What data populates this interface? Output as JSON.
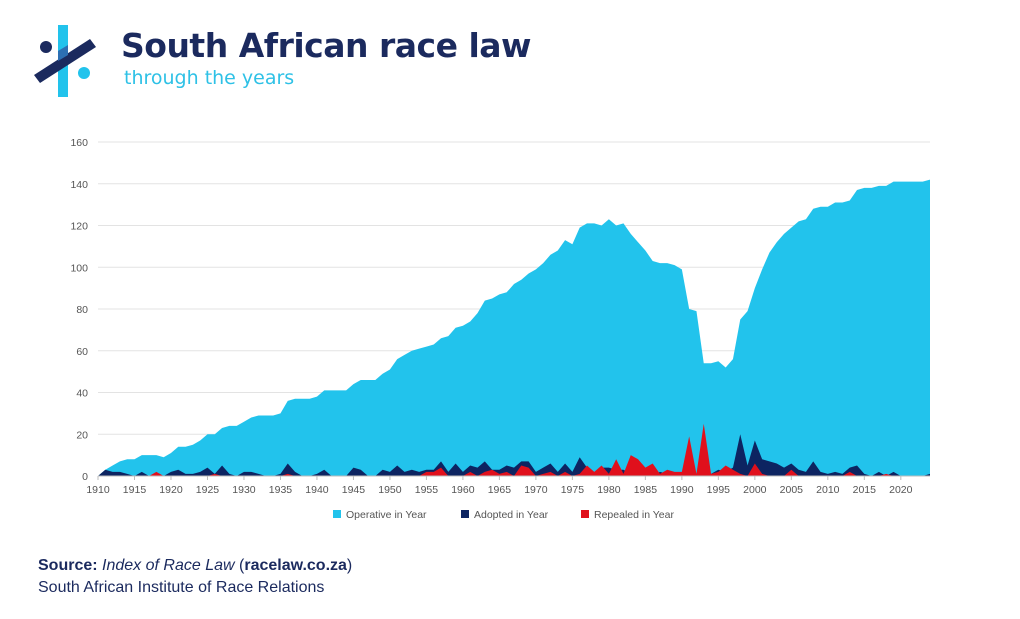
{
  "header": {
    "title": "South African race law",
    "subtitle": "through the years"
  },
  "colors": {
    "navy": "#1b2a5e",
    "operative": "#22c3ec",
    "adopted": "#0d2461",
    "repealed": "#e0101c",
    "grid": "#e3e3e3"
  },
  "source": {
    "label": "Source:",
    "title": "Index of Race Law",
    "paren_open": " (",
    "url": "racelaw.co.za",
    "paren_close": ")",
    "institute": "South African Institute of Race Relations"
  },
  "chart_data": {
    "type": "area",
    "title": "",
    "xlabel": "",
    "ylabel": "",
    "xlim": [
      1910,
      2024
    ],
    "ylim": [
      0,
      160
    ],
    "yticks": [
      0,
      20,
      40,
      60,
      80,
      100,
      120,
      140,
      160
    ],
    "xticks": [
      1910,
      1915,
      1920,
      1925,
      1930,
      1935,
      1940,
      1945,
      1950,
      1955,
      1960,
      1965,
      1970,
      1975,
      1980,
      1985,
      1990,
      1995,
      2000,
      2005,
      2010,
      2015,
      2020
    ],
    "grid": true,
    "legend_position": "bottom",
    "series": [
      {
        "name": "Operative in Year",
        "points": [
          [
            1910,
            0
          ],
          [
            1911,
            3
          ],
          [
            1912,
            5
          ],
          [
            1913,
            7
          ],
          [
            1914,
            8
          ],
          [
            1915,
            8
          ],
          [
            1916,
            10
          ],
          [
            1917,
            10
          ],
          [
            1918,
            10
          ],
          [
            1919,
            9
          ],
          [
            1920,
            11
          ],
          [
            1921,
            14
          ],
          [
            1922,
            14
          ],
          [
            1923,
            15
          ],
          [
            1924,
            17
          ],
          [
            1925,
            20
          ],
          [
            1926,
            20
          ],
          [
            1927,
            23
          ],
          [
            1928,
            24
          ],
          [
            1929,
            24
          ],
          [
            1930,
            26
          ],
          [
            1931,
            28
          ],
          [
            1932,
            29
          ],
          [
            1933,
            29
          ],
          [
            1934,
            29
          ],
          [
            1935,
            30
          ],
          [
            1936,
            36
          ],
          [
            1937,
            37
          ],
          [
            1938,
            37
          ],
          [
            1939,
            37
          ],
          [
            1940,
            38
          ],
          [
            1941,
            41
          ],
          [
            1942,
            41
          ],
          [
            1943,
            41
          ],
          [
            1944,
            41
          ],
          [
            1945,
            44
          ],
          [
            1946,
            46
          ],
          [
            1947,
            46
          ],
          [
            1948,
            46
          ],
          [
            1949,
            49
          ],
          [
            1950,
            51
          ],
          [
            1951,
            56
          ],
          [
            1952,
            58
          ],
          [
            1953,
            60
          ],
          [
            1954,
            61
          ],
          [
            1955,
            62
          ],
          [
            1956,
            63
          ],
          [
            1957,
            66
          ],
          [
            1958,
            67
          ],
          [
            1959,
            71
          ],
          [
            1960,
            72
          ],
          [
            1961,
            74
          ],
          [
            1962,
            78
          ],
          [
            1963,
            84
          ],
          [
            1964,
            85
          ],
          [
            1965,
            87
          ],
          [
            1966,
            88
          ],
          [
            1967,
            92
          ],
          [
            1968,
            94
          ],
          [
            1969,
            97
          ],
          [
            1970,
            99
          ],
          [
            1971,
            102
          ],
          [
            1972,
            106
          ],
          [
            1973,
            108
          ],
          [
            1974,
            113
          ],
          [
            1975,
            111
          ],
          [
            1976,
            119
          ],
          [
            1977,
            121
          ],
          [
            1978,
            121
          ],
          [
            1979,
            120
          ],
          [
            1980,
            123
          ],
          [
            1981,
            120
          ],
          [
            1982,
            121
          ],
          [
            1983,
            116
          ],
          [
            1984,
            112
          ],
          [
            1985,
            108
          ],
          [
            1986,
            103
          ],
          [
            1987,
            102
          ],
          [
            1988,
            102
          ],
          [
            1989,
            101
          ],
          [
            1990,
            99
          ],
          [
            1991,
            80
          ],
          [
            1992,
            79
          ],
          [
            1993,
            54
          ],
          [
            1994,
            54
          ],
          [
            1995,
            55
          ],
          [
            1996,
            52
          ],
          [
            1997,
            56
          ],
          [
            1998,
            75
          ],
          [
            1999,
            79
          ],
          [
            2000,
            90
          ],
          [
            2001,
            99
          ],
          [
            2002,
            107
          ],
          [
            2003,
            112
          ],
          [
            2004,
            116
          ],
          [
            2005,
            119
          ],
          [
            2006,
            122
          ],
          [
            2007,
            123
          ],
          [
            2008,
            128
          ],
          [
            2009,
            129
          ],
          [
            2010,
            129
          ],
          [
            2011,
            131
          ],
          [
            2012,
            131
          ],
          [
            2013,
            132
          ],
          [
            2014,
            137
          ],
          [
            2015,
            138
          ],
          [
            2016,
            138
          ],
          [
            2017,
            139
          ],
          [
            2018,
            139
          ],
          [
            2019,
            141
          ],
          [
            2020,
            141
          ],
          [
            2021,
            141
          ],
          [
            2022,
            141
          ],
          [
            2023,
            141
          ],
          [
            2024,
            142
          ]
        ]
      },
      {
        "name": "Adopted in Year",
        "points": [
          [
            1910,
            0
          ],
          [
            1911,
            3
          ],
          [
            1912,
            2
          ],
          [
            1913,
            2
          ],
          [
            1914,
            1
          ],
          [
            1915,
            0
          ],
          [
            1916,
            2
          ],
          [
            1917,
            0
          ],
          [
            1918,
            0
          ],
          [
            1919,
            0
          ],
          [
            1920,
            2
          ],
          [
            1921,
            3
          ],
          [
            1922,
            1
          ],
          [
            1923,
            1
          ],
          [
            1924,
            2
          ],
          [
            1925,
            4
          ],
          [
            1926,
            1
          ],
          [
            1927,
            5
          ],
          [
            1928,
            1
          ],
          [
            1929,
            0
          ],
          [
            1930,
            2
          ],
          [
            1931,
            2
          ],
          [
            1932,
            1
          ],
          [
            1933,
            0
          ],
          [
            1934,
            0
          ],
          [
            1935,
            1
          ],
          [
            1936,
            6
          ],
          [
            1937,
            2
          ],
          [
            1938,
            0
          ],
          [
            1939,
            0
          ],
          [
            1940,
            1
          ],
          [
            1941,
            3
          ],
          [
            1942,
            0
          ],
          [
            1943,
            0
          ],
          [
            1944,
            0
          ],
          [
            1945,
            4
          ],
          [
            1946,
            3
          ],
          [
            1947,
            0
          ],
          [
            1948,
            0
          ],
          [
            1949,
            3
          ],
          [
            1950,
            2
          ],
          [
            1951,
            5
          ],
          [
            1952,
            2
          ],
          [
            1953,
            3
          ],
          [
            1954,
            2
          ],
          [
            1955,
            3
          ],
          [
            1956,
            3
          ],
          [
            1957,
            7
          ],
          [
            1958,
            2
          ],
          [
            1959,
            6
          ],
          [
            1960,
            2
          ],
          [
            1961,
            5
          ],
          [
            1962,
            4
          ],
          [
            1963,
            7
          ],
          [
            1964,
            3
          ],
          [
            1965,
            3
          ],
          [
            1966,
            5
          ],
          [
            1967,
            4
          ],
          [
            1968,
            7
          ],
          [
            1969,
            7
          ],
          [
            1970,
            2
          ],
          [
            1971,
            4
          ],
          [
            1972,
            6
          ],
          [
            1973,
            2
          ],
          [
            1974,
            6
          ],
          [
            1975,
            2
          ],
          [
            1976,
            9
          ],
          [
            1977,
            4
          ],
          [
            1978,
            1
          ],
          [
            1979,
            4
          ],
          [
            1980,
            4
          ],
          [
            1981,
            3
          ],
          [
            1982,
            3
          ],
          [
            1983,
            1
          ],
          [
            1984,
            1
          ],
          [
            1985,
            1
          ],
          [
            1986,
            0
          ],
          [
            1987,
            2
          ],
          [
            1988,
            1
          ],
          [
            1989,
            0
          ],
          [
            1990,
            1
          ],
          [
            1991,
            1
          ],
          [
            1992,
            1
          ],
          [
            1993,
            1
          ],
          [
            1994,
            1
          ],
          [
            1995,
            3
          ],
          [
            1996,
            2
          ],
          [
            1997,
            4
          ],
          [
            1998,
            20
          ],
          [
            1999,
            5
          ],
          [
            2000,
            17
          ],
          [
            2001,
            8
          ],
          [
            2002,
            7
          ],
          [
            2003,
            6
          ],
          [
            2004,
            4
          ],
          [
            2005,
            6
          ],
          [
            2006,
            3
          ],
          [
            2007,
            2
          ],
          [
            2008,
            7
          ],
          [
            2009,
            2
          ],
          [
            2010,
            1
          ],
          [
            2011,
            2
          ],
          [
            2012,
            1
          ],
          [
            2013,
            4
          ],
          [
            2014,
            5
          ],
          [
            2015,
            1
          ],
          [
            2016,
            0
          ],
          [
            2017,
            2
          ],
          [
            2018,
            0
          ],
          [
            2019,
            2
          ],
          [
            2020,
            0
          ],
          [
            2021,
            0
          ],
          [
            2022,
            0
          ],
          [
            2023,
            0
          ],
          [
            2024,
            1
          ]
        ]
      },
      {
        "name": "Repealed in Year",
        "points": [
          [
            1910,
            0
          ],
          [
            1917,
            0
          ],
          [
            1918,
            2
          ],
          [
            1919,
            0
          ],
          [
            1925,
            0
          ],
          [
            1926,
            1
          ],
          [
            1927,
            0
          ],
          [
            1935,
            0
          ],
          [
            1936,
            1
          ],
          [
            1937,
            0
          ],
          [
            1954,
            0
          ],
          [
            1955,
            2
          ],
          [
            1956,
            2
          ],
          [
            1957,
            4
          ],
          [
            1958,
            0
          ],
          [
            1960,
            0
          ],
          [
            1961,
            2
          ],
          [
            1962,
            0
          ],
          [
            1963,
            2
          ],
          [
            1964,
            3
          ],
          [
            1965,
            1
          ],
          [
            1966,
            2
          ],
          [
            1967,
            0
          ],
          [
            1968,
            5
          ],
          [
            1969,
            4
          ],
          [
            1970,
            0
          ],
          [
            1971,
            1
          ],
          [
            1972,
            2
          ],
          [
            1973,
            0
          ],
          [
            1974,
            2
          ],
          [
            1975,
            0
          ],
          [
            1976,
            1
          ],
          [
            1977,
            5
          ],
          [
            1978,
            2
          ],
          [
            1979,
            5
          ],
          [
            1980,
            1
          ],
          [
            1981,
            8
          ],
          [
            1982,
            1
          ],
          [
            1983,
            10
          ],
          [
            1984,
            8
          ],
          [
            1985,
            4
          ],
          [
            1986,
            6
          ],
          [
            1987,
            1
          ],
          [
            1988,
            3
          ],
          [
            1989,
            2
          ],
          [
            1990,
            2
          ],
          [
            1991,
            19
          ],
          [
            1992,
            1
          ],
          [
            1993,
            25
          ],
          [
            1994,
            1
          ],
          [
            1995,
            2
          ],
          [
            1996,
            5
          ],
          [
            1997,
            3
          ],
          [
            1998,
            1
          ],
          [
            1999,
            0
          ],
          [
            2000,
            6
          ],
          [
            2001,
            1
          ],
          [
            2002,
            0
          ],
          [
            2004,
            0
          ],
          [
            2005,
            3
          ],
          [
            2006,
            0
          ],
          [
            2012,
            0
          ],
          [
            2013,
            2
          ],
          [
            2014,
            0
          ],
          [
            2017,
            0
          ],
          [
            2018,
            1
          ],
          [
            2019,
            0
          ],
          [
            2024,
            0
          ]
        ]
      }
    ]
  }
}
